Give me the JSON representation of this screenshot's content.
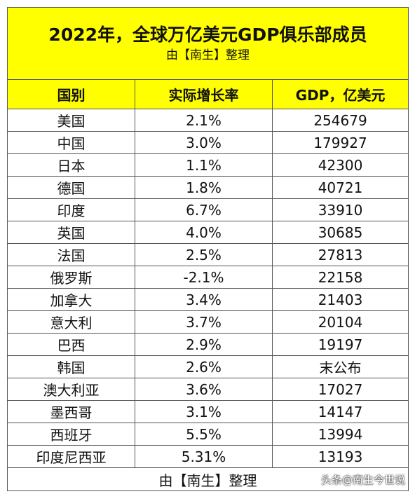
{
  "header": {
    "title": "2022年，全球万亿美元GDP俱乐部成员",
    "subtitle": "由【南生】整理"
  },
  "table": {
    "columns": [
      "国别",
      "实际增长率",
      "GDP，亿美元"
    ],
    "rows": [
      [
        "美国",
        "2.1%",
        "254679"
      ],
      [
        "中国",
        "3.0%",
        "179927"
      ],
      [
        "日本",
        "1.1%",
        "42300"
      ],
      [
        "德国",
        "1.8%",
        "40721"
      ],
      [
        "印度",
        "6.7%",
        "33910"
      ],
      [
        "英国",
        "4.0%",
        "30685"
      ],
      [
        "法国",
        "2.5%",
        "27813"
      ],
      [
        "俄罗斯",
        "-2.1%",
        "22158"
      ],
      [
        "加拿大",
        "3.4%",
        "21403"
      ],
      [
        "意大利",
        "3.7%",
        "20104"
      ],
      [
        "巴西",
        "2.9%",
        "19197"
      ],
      [
        "韩国",
        "2.6%",
        "末公布"
      ],
      [
        "澳大利亚",
        "3.6%",
        "17027"
      ],
      [
        "墨西哥",
        "3.1%",
        "14147"
      ],
      [
        "西班牙",
        "5.5%",
        "13994"
      ],
      [
        "印度尼西亚",
        "5.31%",
        "13193"
      ]
    ],
    "footer": "由【南生】整理"
  },
  "watermark": "头条@南生今世说"
}
